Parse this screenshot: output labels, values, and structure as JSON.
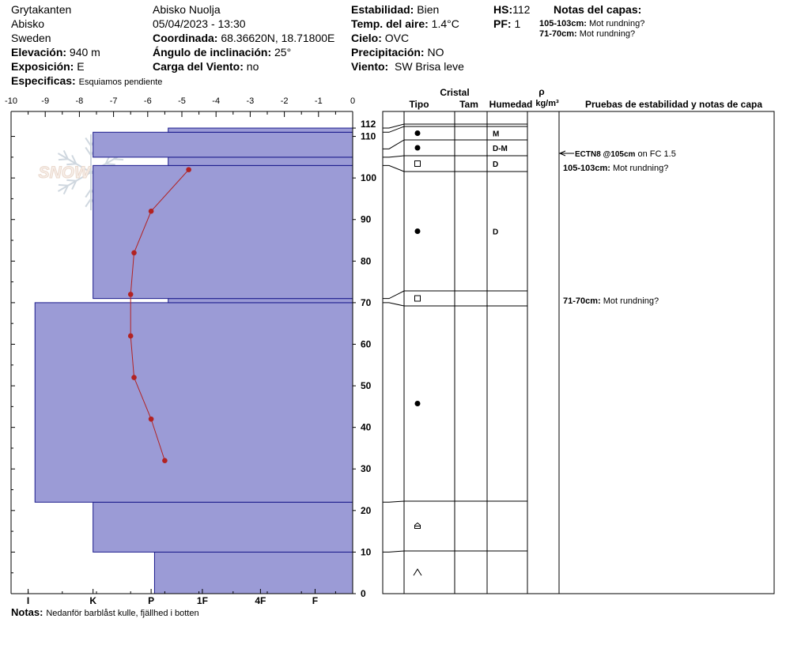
{
  "header": {
    "location": "Grytakanten",
    "region": "Abisko",
    "country": "Sweden",
    "elevation_label": "Elevación:",
    "elevation_value": "940 m",
    "exposure_label": "Exposición:",
    "exposure_value": "E",
    "specifics_label": "Especificas:",
    "specifics_value": "Esquiamos pendiente",
    "area": "Abisko Nuolja",
    "datetime": "05/04/2023 - 13:30",
    "coord_label": "Coordinada:",
    "coord_value": "68.36620N, 18.71800E",
    "slope_label": "Ángulo de inclinación:",
    "slope_value": "25°",
    "wind_load_label": "Carga del Viento:",
    "wind_load_value": "no",
    "stability_label": "Estabilidad:",
    "stability_value": "Bien",
    "air_temp_label": "Temp. del aire:",
    "air_temp_value": "1.4°C",
    "sky_label": "Cielo:",
    "sky_value": "OVC",
    "precip_label": "Precipitación:",
    "precip_value": "NO",
    "wind_label": "Viento:",
    "wind_value": "SW Brisa leve",
    "hs_label": "HS:",
    "hs_value": "112",
    "pf_label": "PF:",
    "pf_value": "1",
    "layer_notes_title": "Notas del capas:",
    "layer_notes": [
      {
        "range": "105-103cm:",
        "text": "Mot rundning?"
      },
      {
        "range": "71-70cm:",
        "text": "Mot rundning?"
      }
    ]
  },
  "footer": {
    "notes_label": "Notas:",
    "notes_value": "Nedanför barblåst kulle, fjällhed i botten"
  },
  "logo_text": "SNOW PILOT",
  "colors": {
    "layer_fill": "#9b9bd6",
    "layer_stroke": "#1a1a8c",
    "temp_line": "#b22222"
  },
  "chart_data": [
    {
      "type": "bar",
      "subtype": "hand-hardness profile",
      "y_unit": "cm",
      "ylim": [
        0,
        116
      ],
      "y_ticks": [
        0,
        10,
        20,
        30,
        40,
        50,
        60,
        70,
        80,
        90,
        100,
        110,
        112
      ],
      "hardness_axis": [
        "I",
        "K",
        "P",
        "1F",
        "4F",
        "F"
      ],
      "hardness_scale_note": "0 = F side, larger = harder (I)",
      "layers": [
        {
          "bottom": 0,
          "top": 10,
          "hardness": "4F"
        },
        {
          "bottom": 10,
          "top": 22,
          "hardness": "P+"
        },
        {
          "bottom": 22,
          "top": 70,
          "hardness": "K+"
        },
        {
          "bottom": 70,
          "top": 71,
          "hardness": "1F"
        },
        {
          "bottom": 71,
          "top": 103,
          "hardness": "P+"
        },
        {
          "bottom": 103,
          "top": 105,
          "hardness": "1F"
        },
        {
          "bottom": 105,
          "top": 111,
          "hardness": "P+"
        },
        {
          "bottom": 111,
          "top": 112,
          "hardness": "1F"
        }
      ],
      "layer_hardness_units": [
        5.8,
        7.6,
        9.3,
        5.4,
        7.6,
        5.4,
        7.6,
        5.4
      ]
    },
    {
      "type": "line",
      "name": "temperature profile",
      "x_label_ticks": [
        -10,
        -9,
        -8,
        -7,
        -6,
        -5,
        -4,
        -3,
        -2,
        -1,
        0
      ],
      "xlim": [
        -10,
        0
      ],
      "points": [
        {
          "depth": 102,
          "temp": -4.8
        },
        {
          "depth": 92,
          "temp": -5.9
        },
        {
          "depth": 82,
          "temp": -6.4
        },
        {
          "depth": 72,
          "temp": -6.5
        },
        {
          "depth": 62,
          "temp": -6.5
        },
        {
          "depth": 52,
          "temp": -6.4
        },
        {
          "depth": 42,
          "temp": -5.9
        },
        {
          "depth": 32,
          "temp": -5.5
        }
      ]
    },
    {
      "type": "table",
      "name": "crystal layers",
      "columns": [
        "Tipo",
        "Tam",
        "Humedad",
        "ρ kg/m³",
        "Pruebas de estabilidad y notas de capa"
      ],
      "group_header": "Cristal",
      "density_header": "ρ",
      "density_unit": "kg/m³",
      "rows": [
        {
          "top": 112,
          "bottom": 111,
          "tipo": "",
          "humedad": ""
        },
        {
          "top": 111,
          "bottom": 107,
          "tipo": "●",
          "humedad": "M"
        },
        {
          "top": 107,
          "bottom": 105,
          "tipo": "●",
          "humedad": "D-M"
        },
        {
          "top": 105,
          "bottom": 103,
          "tipo": "□",
          "humedad": "D"
        },
        {
          "top": 103,
          "bottom": 71,
          "tipo": "●",
          "humedad": "D"
        },
        {
          "top": 71,
          "bottom": 70,
          "tipo": "□",
          "humedad": ""
        },
        {
          "top": 70,
          "bottom": 22,
          "tipo": "●",
          "humedad": ""
        },
        {
          "top": 22,
          "bottom": 10,
          "tipo": "⌂",
          "humedad": ""
        },
        {
          "top": 10,
          "bottom": 0,
          "tipo": "^",
          "humedad": ""
        }
      ],
      "tests": [
        {
          "depth": 105,
          "label": "ECTN8 @105cm",
          "text": "on FC 1.5"
        }
      ],
      "layer_comments": [
        {
          "depth": 103.5,
          "range": "105-103cm:",
          "text": "Mot rundning?"
        },
        {
          "depth": 70.5,
          "range": "71-70cm:",
          "text": "Mot rundning?"
        }
      ]
    }
  ]
}
